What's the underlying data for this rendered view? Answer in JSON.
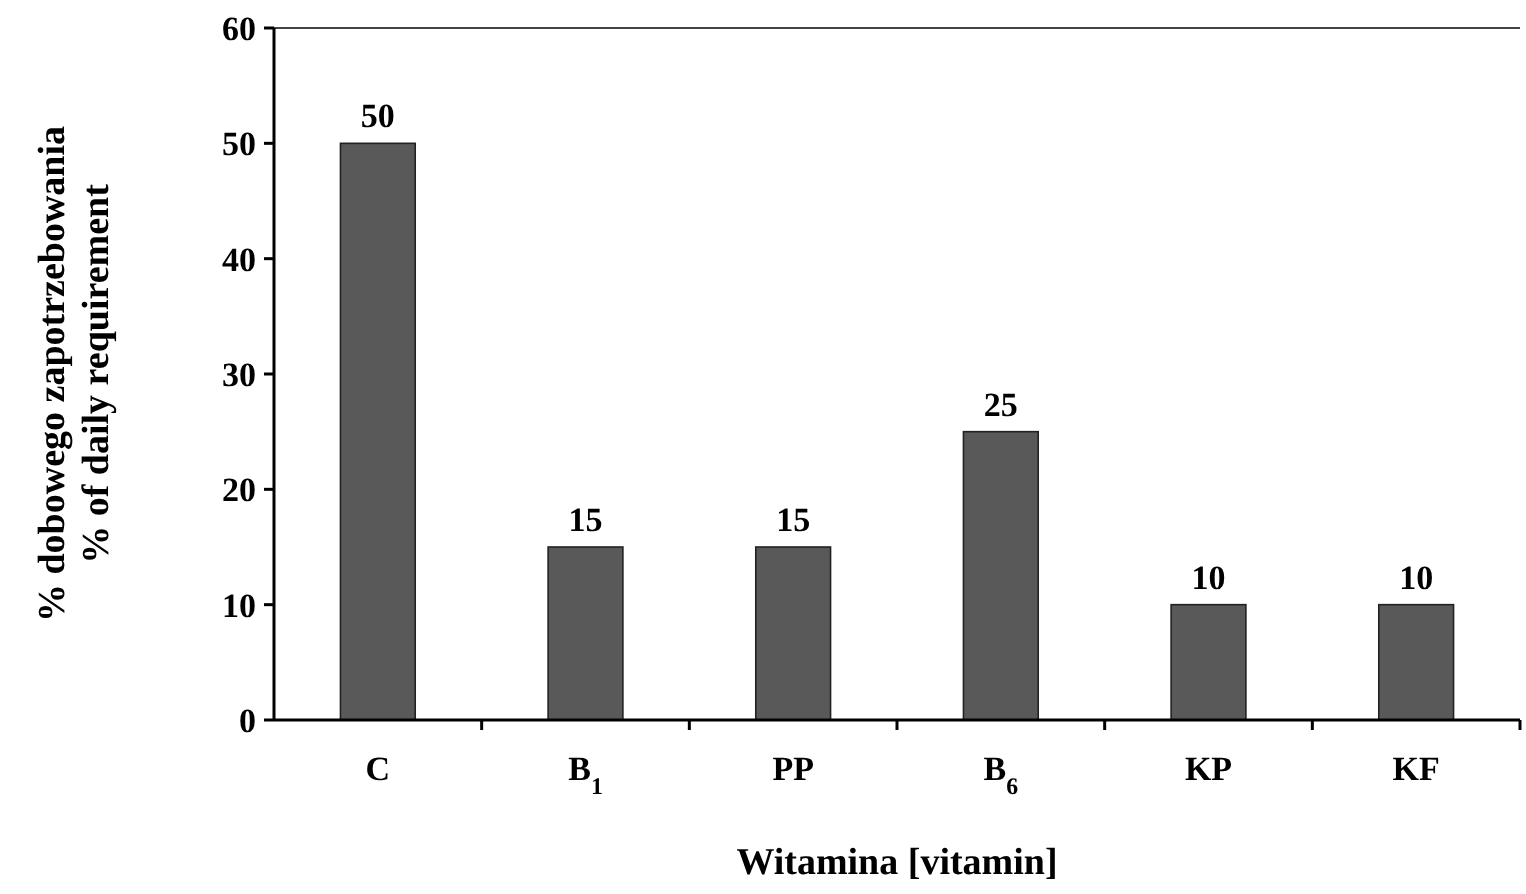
{
  "chart_data": {
    "type": "bar",
    "xlabel": "Witamina [vitamin]",
    "ylabel": "% dobowego zapotrzebowania\n% of daily requirement",
    "categories": [
      "C",
      "B$_{1}$",
      "PP",
      "B$_{6}$",
      "KP",
      "KF"
    ],
    "values": [
      50,
      15,
      15,
      25,
      10,
      10
    ],
    "color": "#595959",
    "ylim": [
      0,
      60
    ],
    "yticks": [
      0,
      10,
      20,
      30,
      40,
      50,
      60
    ],
    "data_labels": true,
    "grid": false
  }
}
